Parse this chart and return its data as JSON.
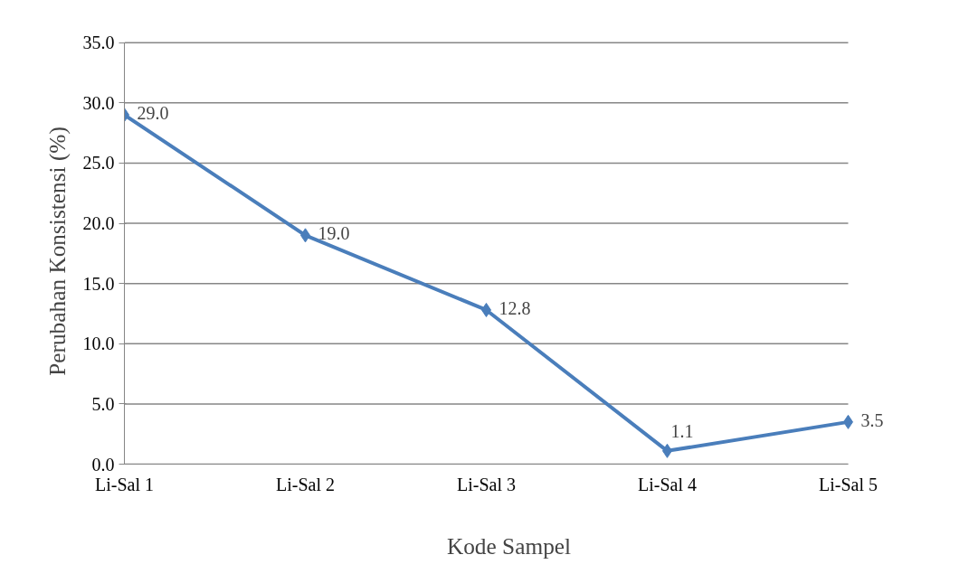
{
  "chart_data": {
    "type": "line",
    "xlabel": "Kode Sampel",
    "ylabel": "Perubahan Konsistensi (%)",
    "categories": [
      "Li-Sal 1",
      "Li-Sal 2",
      "Li-Sal 3",
      "Li-Sal 4",
      "Li-Sal 5"
    ],
    "series": [
      {
        "color": "#4a7ebb",
        "values": [
          29.0,
          19.0,
          12.8,
          1.1,
          3.5
        ],
        "value_labels": [
          "29.0",
          "19.0",
          "12.8",
          "1.1",
          "3.5"
        ]
      }
    ],
    "ylim": [
      0,
      35
    ],
    "yticks": [
      {
        "value": 0,
        "label": "0.0"
      },
      {
        "value": 5,
        "label": "5.0"
      },
      {
        "value": 10,
        "label": "10.0"
      },
      {
        "value": 15,
        "label": "15.0"
      },
      {
        "value": 20,
        "label": "20.0"
      },
      {
        "value": 25,
        "label": "25.0"
      },
      {
        "value": 30,
        "label": "30.0"
      },
      {
        "value": 35,
        "label": "35.0"
      }
    ],
    "grid": "y",
    "marker": "diamond",
    "line_style": "solid"
  }
}
